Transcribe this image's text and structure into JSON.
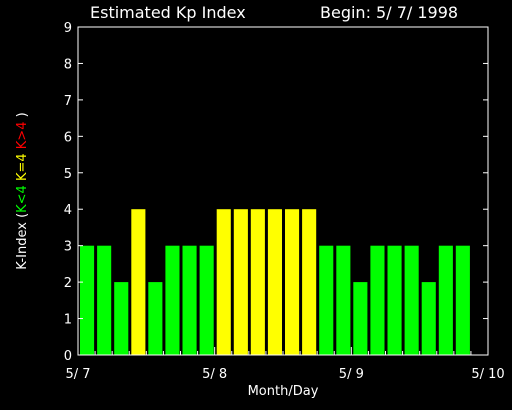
{
  "header": {
    "title": "Estimated Kp Index",
    "begin": "Begin: 5/ 7/ 1998"
  },
  "ylabel_parts": [
    {
      "text": "K-Index (",
      "color": "#ffffff"
    },
    {
      "text": "K<4",
      "color": "#00ff00"
    },
    {
      "text": " K=4 ",
      "color": "#ffff00"
    },
    {
      "text": "K>4",
      "color": "#ff0000"
    },
    {
      "text": " )",
      "color": "#ffffff"
    }
  ],
  "chart_data": {
    "type": "bar",
    "title": "Estimated Kp Index",
    "xlabel": "Month/Day",
    "ylabel": "K-Index ( K<4 K=4 K>4 )",
    "ylim": [
      0,
      9
    ],
    "yticks": [
      0,
      1,
      2,
      3,
      4,
      5,
      6,
      7,
      8,
      9
    ],
    "xlim": [
      0,
      24
    ],
    "xtick_labels": [
      "5/ 7",
      "5/ 8",
      "5/ 9",
      "5/ 10"
    ],
    "values": [
      3,
      3,
      2,
      4,
      2,
      3,
      3,
      3,
      4,
      4,
      4,
      4,
      4,
      4,
      3,
      3,
      2,
      3,
      3,
      3,
      2,
      3,
      3
    ],
    "colors": {
      "below": "#00ff00",
      "equal": "#ffff00",
      "above": "#ff0000"
    },
    "grid": false,
    "legend": "none"
  }
}
